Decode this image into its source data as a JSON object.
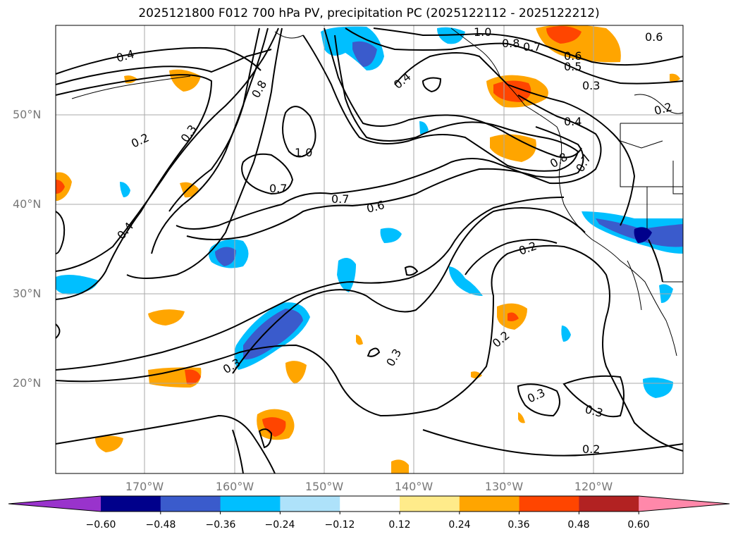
{
  "title": "2025121800 F012 700 hPa PV, precipitation PC (2025122112 - 2025122212)",
  "lat_labels": [
    "50°N",
    "40°N",
    "30°N",
    "20°N"
  ],
  "lon_labels": [
    "170°W",
    "160°W",
    "150°W",
    "140°W",
    "130°W",
    "120°W"
  ],
  "colorbar": {
    "colors": [
      "#9933cc",
      "#00008b",
      "#3a5bcc",
      "#00bfff",
      "#aee2fa",
      "#ffffff",
      "#ffeb8a",
      "#ffa500",
      "#ff4500",
      "#b22222",
      "#ff88aa"
    ],
    "labels": [
      "−0.60",
      "−0.48",
      "−0.36",
      "−0.24",
      "−0.12",
      "0.12",
      "0.24",
      "0.36",
      "0.48",
      "0.60"
    ]
  },
  "contour_labels": [
    "0.4",
    "0.2",
    "0.3",
    "0.8",
    "1.0",
    "0.7",
    "0.7",
    "0.6",
    "0.4",
    "1.0",
    "0.8",
    "0.7",
    "0.6",
    "0.5",
    "0.3",
    "0.2",
    "0.4",
    "0.8",
    "0.7",
    "0.2",
    "0.2",
    "0.3",
    "0.3",
    "0.3",
    "0.2",
    "0.4",
    "0.6",
    "0.3"
  ]
}
